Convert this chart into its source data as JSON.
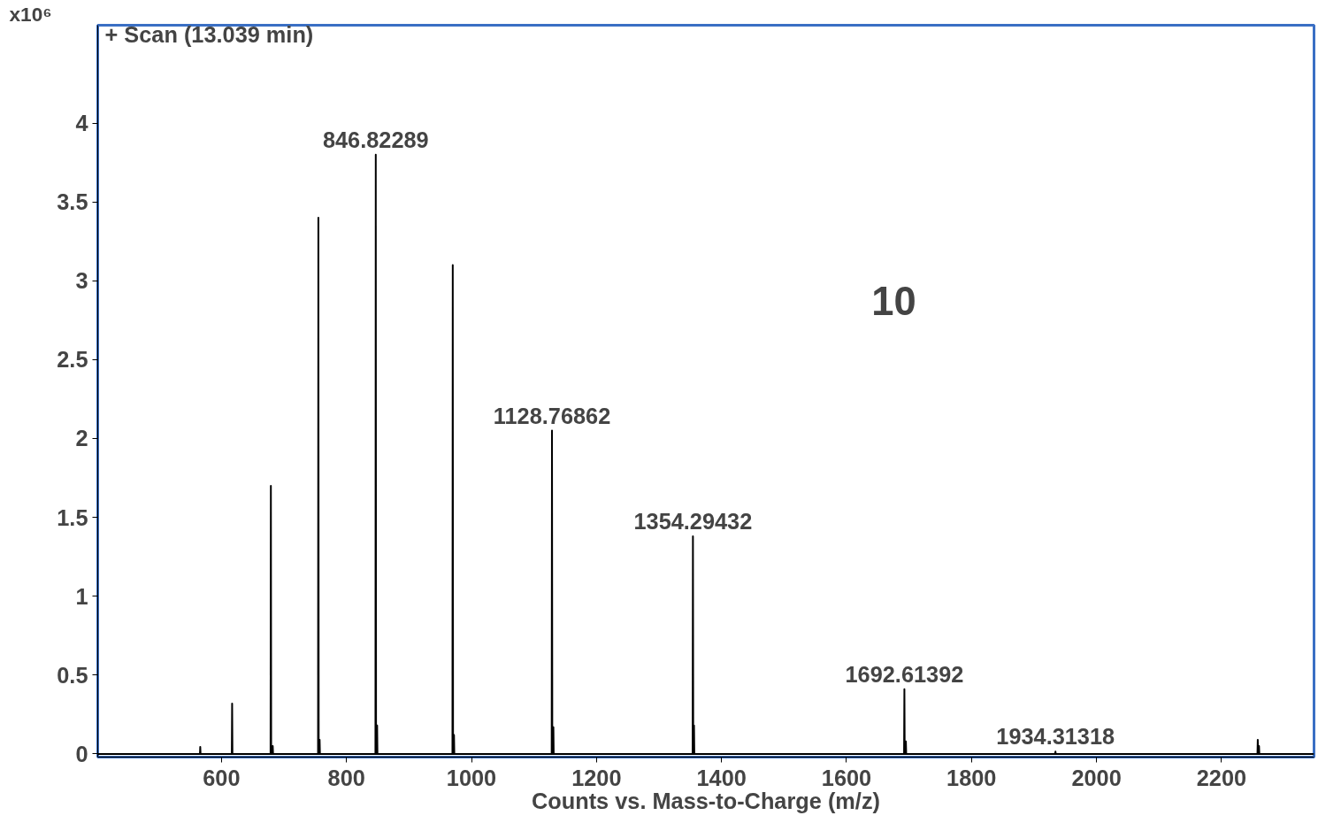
{
  "chart_data": {
    "type": "line",
    "title": "+ Scan (13.039 min)",
    "xlabel": "Counts vs. Mass-to-Charge (m/z)",
    "ylabel": "x10⁶",
    "x": [
      402,
      565.5,
      566,
      566.5,
      616.5,
      617,
      617.5,
      678.5,
      679,
      679.5,
      681.5,
      682,
      682.5,
      754.5,
      755,
      755.5,
      756.5,
      757,
      757.5,
      846.3,
      846.82289,
      847.3,
      848.5,
      849,
      849.5,
      969.5,
      970,
      970.5,
      971.5,
      972,
      972.5,
      1128.3,
      1128.76862,
      1129.3,
      1130.5,
      1131,
      1131.5,
      1353.8,
      1354.29432,
      1354.8,
      1355.5,
      1356,
      1356.5,
      1692.1,
      1692.61392,
      1693.1,
      1694.5,
      1695,
      1695.5,
      1933.8,
      1934.31318,
      1934.8,
      2257.5,
      2258,
      2258.5,
      2259.5,
      2260,
      2260.5,
      2348
    ],
    "series": [
      {
        "color": "#000000",
        "values": [
          0,
          0,
          0.045,
          0,
          0,
          0.32,
          0,
          0,
          1.7,
          0,
          0,
          0.05,
          0,
          0,
          3.4,
          0,
          0,
          0.09,
          0,
          0,
          3.8,
          0,
          0,
          0.18,
          0,
          0,
          3.1,
          0,
          0,
          0.12,
          0,
          0,
          2.05,
          0,
          0,
          0.17,
          0,
          0,
          1.38,
          0,
          0,
          0.18,
          0,
          0,
          0.41,
          0,
          0,
          0.08,
          0,
          0,
          0.015,
          0,
          0,
          0.09,
          0,
          0,
          0.05,
          0,
          0
        ]
      }
    ],
    "annotations": [
      {
        "text": "846.82289",
        "x": 846.82289,
        "y": 3.8
      },
      {
        "text": "1128.76862",
        "x": 1128.76862,
        "y": 2.05
      },
      {
        "text": "1354.29432",
        "x": 1354.29432,
        "y": 1.38
      },
      {
        "text": "1692.61392",
        "x": 1692.61392,
        "y": 0.41
      },
      {
        "text": "1934.31318",
        "x": 1934.31318,
        "y": 0.015
      },
      "10"
    ],
    "xlim": [
      402,
      2348
    ],
    "ylim": [
      -0.02,
      4.62
    ],
    "xticks": [
      600,
      800,
      1000,
      1200,
      1400,
      1600,
      1800,
      2000,
      2200
    ],
    "yticks": [
      0,
      0.5,
      1,
      1.5,
      2,
      2.5,
      3,
      3.5,
      4
    ],
    "grid": false
  }
}
